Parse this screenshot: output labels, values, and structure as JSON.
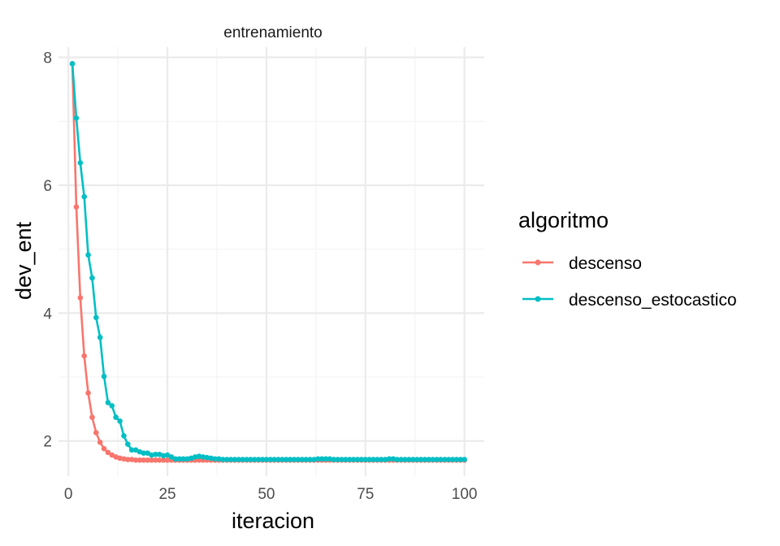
{
  "chart_data": {
    "type": "line",
    "facet_label": "entrenamiento",
    "xlabel": "iteracion",
    "ylabel": "dev_ent",
    "xlim": [
      -2.5,
      105.0
    ],
    "ylim": [
      1.45,
      8.16
    ],
    "x_ticks": [
      0,
      25,
      50,
      75,
      100
    ],
    "y_ticks": [
      2,
      4,
      6,
      8
    ],
    "x_tick_labels": [
      "0",
      "25",
      "50",
      "75",
      "100"
    ],
    "y_tick_labels": [
      "2",
      "4",
      "6",
      "8"
    ],
    "grid": true,
    "legend": {
      "title": "algoritmo",
      "position": "right"
    },
    "x": [
      1,
      2,
      3,
      4,
      5,
      6,
      7,
      8,
      9,
      10,
      11,
      12,
      13,
      14,
      15,
      16,
      17,
      18,
      19,
      20,
      21,
      22,
      23,
      24,
      25,
      26,
      27,
      28,
      29,
      30,
      31,
      32,
      33,
      34,
      35,
      36,
      37,
      38,
      39,
      40,
      41,
      42,
      43,
      44,
      45,
      46,
      47,
      48,
      49,
      50,
      51,
      52,
      53,
      54,
      55,
      56,
      57,
      58,
      59,
      60,
      61,
      62,
      63,
      64,
      65,
      66,
      67,
      68,
      69,
      70,
      71,
      72,
      73,
      74,
      75,
      76,
      77,
      78,
      79,
      80,
      81,
      82,
      83,
      84,
      85,
      86,
      87,
      88,
      89,
      90,
      91,
      92,
      93,
      94,
      95,
      96,
      97,
      98,
      99,
      100
    ],
    "series": [
      {
        "name": "descenso",
        "color": "#F8766D",
        "values": [
          7.9,
          5.66,
          4.24,
          3.33,
          2.75,
          2.37,
          2.13,
          1.98,
          1.88,
          1.82,
          1.78,
          1.75,
          1.73,
          1.72,
          1.71,
          1.71,
          1.7,
          1.7,
          1.7,
          1.7,
          1.7,
          1.7,
          1.7,
          1.7,
          1.7,
          1.7,
          1.7,
          1.7,
          1.7,
          1.7,
          1.7,
          1.7,
          1.7,
          1.7,
          1.7,
          1.7,
          1.7,
          1.7,
          1.7,
          1.7,
          1.7,
          1.7,
          1.7,
          1.7,
          1.7,
          1.7,
          1.7,
          1.7,
          1.7,
          1.7,
          1.7,
          1.7,
          1.7,
          1.7,
          1.7,
          1.7,
          1.7,
          1.7,
          1.7,
          1.7,
          1.7,
          1.7,
          1.7,
          1.7,
          1.7,
          1.7,
          1.7,
          1.7,
          1.7,
          1.7,
          1.7,
          1.7,
          1.7,
          1.7,
          1.7,
          1.7,
          1.7,
          1.7,
          1.7,
          1.7,
          1.7,
          1.7,
          1.7,
          1.7,
          1.7,
          1.7,
          1.7,
          1.7,
          1.7,
          1.7,
          1.7,
          1.7,
          1.7,
          1.7,
          1.7,
          1.7,
          1.7,
          1.7,
          1.7,
          1.7
        ]
      },
      {
        "name": "descenso_estocastico",
        "color": "#00BFC4",
        "values": [
          7.9,
          7.05,
          6.35,
          5.82,
          4.91,
          4.55,
          3.93,
          3.62,
          3.01,
          2.6,
          2.55,
          2.37,
          2.31,
          2.08,
          1.95,
          1.86,
          1.86,
          1.83,
          1.81,
          1.81,
          1.78,
          1.79,
          1.79,
          1.77,
          1.78,
          1.75,
          1.72,
          1.72,
          1.72,
          1.72,
          1.73,
          1.75,
          1.76,
          1.75,
          1.74,
          1.73,
          1.72,
          1.72,
          1.71,
          1.71,
          1.71,
          1.71,
          1.71,
          1.71,
          1.71,
          1.71,
          1.71,
          1.71,
          1.71,
          1.71,
          1.71,
          1.71,
          1.71,
          1.71,
          1.71,
          1.71,
          1.71,
          1.71,
          1.71,
          1.71,
          1.71,
          1.71,
          1.72,
          1.72,
          1.72,
          1.72,
          1.71,
          1.71,
          1.71,
          1.71,
          1.71,
          1.71,
          1.71,
          1.71,
          1.71,
          1.71,
          1.71,
          1.71,
          1.71,
          1.71,
          1.72,
          1.72,
          1.71,
          1.71,
          1.71,
          1.71,
          1.71,
          1.71,
          1.71,
          1.71,
          1.71,
          1.71,
          1.71,
          1.71,
          1.71,
          1.71,
          1.71,
          1.71,
          1.71,
          1.71
        ]
      }
    ]
  }
}
